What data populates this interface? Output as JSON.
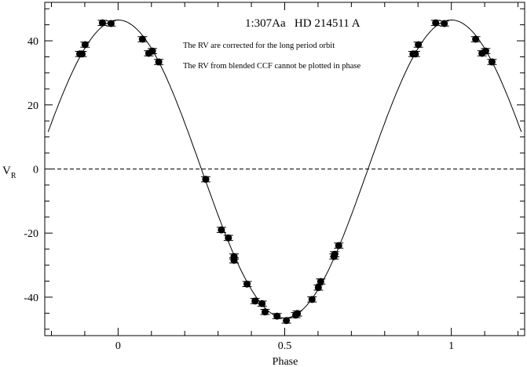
{
  "chart_data": {
    "type": "scatter",
    "title": "1:307Aa   HD 214511 A",
    "annotations": [
      "The RV are corrected for the long period orbit",
      "The RV from blended CCF cannot be plotted in phase"
    ],
    "xlabel": "Phase",
    "ylabel": "V",
    "ylabel_subscript": "R",
    "xlim": [
      -0.22,
      1.22
    ],
    "ylim": [
      -52,
      52
    ],
    "xticks": [
      0,
      0.5,
      1
    ],
    "xtick_labels": [
      "0",
      "0.5",
      "1"
    ],
    "xminor_step": 0.1,
    "yticks": [
      -40,
      -20,
      0,
      20,
      40
    ],
    "ytick_labels": [
      "-40",
      "-20",
      "0",
      "20",
      "40"
    ],
    "yminor_step": 5,
    "grid": false,
    "zero_line": {
      "y": 0,
      "style": "dashed"
    },
    "model_curve": {
      "type": "sinusoid",
      "amplitude": 46.5,
      "offset": 0,
      "phase_of_max": 0
    },
    "points": [
      [
        -0.115,
        35.9
      ],
      [
        -0.108,
        35.9
      ],
      [
        -0.099,
        38.8
      ],
      [
        -0.047,
        45.6
      ],
      [
        -0.021,
        45.4
      ],
      [
        0.073,
        40.5
      ],
      [
        0.092,
        36.1
      ],
      [
        0.103,
        36.8
      ],
      [
        0.122,
        33.4
      ],
      [
        0.263,
        -3.2
      ],
      [
        0.31,
        -19.0
      ],
      [
        0.331,
        -21.5
      ],
      [
        0.348,
        -27.3
      ],
      [
        0.348,
        -28.5
      ],
      [
        0.387,
        -35.9
      ],
      [
        0.411,
        -41.2
      ],
      [
        0.432,
        -42.0
      ],
      [
        0.441,
        -44.6
      ],
      [
        0.477,
        -45.9
      ],
      [
        0.505,
        -47.3
      ],
      [
        0.533,
        -45.6
      ],
      [
        0.538,
        -45.1
      ],
      [
        0.582,
        -40.7
      ],
      [
        0.601,
        -37.0
      ],
      [
        0.608,
        -35.1
      ],
      [
        0.648,
        -27.3
      ],
      [
        0.65,
        -26.6
      ],
      [
        0.662,
        -23.9
      ],
      [
        0.885,
        35.9
      ],
      [
        0.892,
        35.9
      ],
      [
        0.901,
        38.8
      ],
      [
        0.953,
        45.6
      ],
      [
        0.979,
        45.4
      ],
      [
        1.073,
        40.5
      ],
      [
        1.092,
        36.1
      ],
      [
        1.103,
        36.8
      ],
      [
        1.122,
        33.4
      ]
    ],
    "error_bar": 0.8,
    "marker_color": "#000000"
  }
}
